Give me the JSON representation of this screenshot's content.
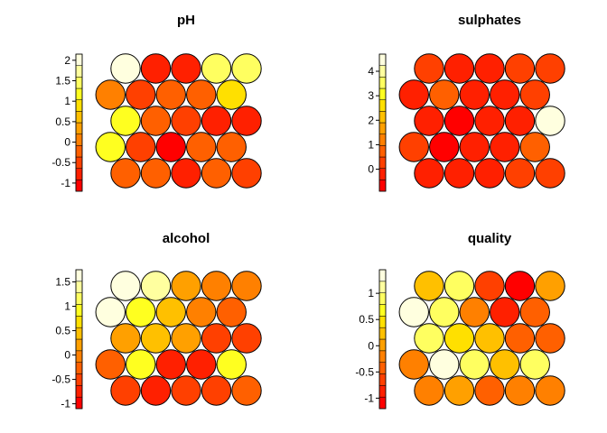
{
  "palette": [
    "#ff0000",
    "#ff2000",
    "#ff4000",
    "#ff6000",
    "#ff8000",
    "#ffa000",
    "#ffc000",
    "#ffe000",
    "#ffff20",
    "#ffff60",
    "#ffff9f",
    "#ffffdf"
  ],
  "chart_data": [
    {
      "type": "heatmap",
      "title": "pH",
      "ylim": [
        -1.2,
        2.15
      ],
      "ticks": [
        {
          "value": 2,
          "label": "2"
        },
        {
          "value": 1.5,
          "label": "1.5"
        },
        {
          "value": 1,
          "label": "1"
        },
        {
          "value": 0.5,
          "label": "0.5"
        },
        {
          "value": 0,
          "label": "0"
        },
        {
          "value": -0.5,
          "label": "-0.5"
        },
        {
          "value": -1,
          "label": "-1"
        }
      ],
      "rows": [
        [
          1.95,
          -0.8,
          -0.65,
          1.35,
          1.35
        ],
        [
          -0.05,
          -0.4,
          -0.1,
          -0.15,
          1.0
        ],
        [
          1.3,
          -0.35,
          -0.5,
          -0.7,
          -0.9
        ],
        [
          1.1,
          -0.6,
          -1.0,
          -0.3,
          -0.1
        ],
        [
          -0.3,
          -0.15,
          -0.85,
          -0.35,
          -0.5
        ]
      ]
    },
    {
      "type": "heatmap",
      "title": "sulphates",
      "ylim": [
        -0.9,
        4.7
      ],
      "ticks": [
        {
          "value": 4,
          "label": "4"
        },
        {
          "value": 3,
          "label": "3"
        },
        {
          "value": 2,
          "label": "2"
        },
        {
          "value": 1,
          "label": "1"
        },
        {
          "value": 0,
          "label": "0"
        }
      ],
      "rows": [
        [
          0.3,
          -0.3,
          -0.1,
          0.3,
          0.3
        ],
        [
          -0.1,
          0.7,
          -0.3,
          -0.2,
          0.5
        ],
        [
          -0.2,
          -0.5,
          -0.3,
          0.0,
          4.6
        ],
        [
          0.3,
          -0.5,
          -0.3,
          0.0,
          0.9
        ],
        [
          -0.3,
          -0.2,
          -0.1,
          0.1,
          0.3
        ]
      ]
    },
    {
      "type": "heatmap",
      "title": "alcohol",
      "ylim": [
        -1.1,
        1.75
      ],
      "ticks": [
        {
          "value": 1.5,
          "label": "1.5"
        },
        {
          "value": 1,
          "label": "1"
        },
        {
          "value": 0.5,
          "label": "0.5"
        },
        {
          "value": 0,
          "label": "0"
        },
        {
          "value": -0.5,
          "label": "-0.5"
        },
        {
          "value": -1,
          "label": "-1"
        }
      ],
      "rows": [
        [
          1.65,
          1.3,
          0.1,
          -0.05,
          0.0
        ],
        [
          1.6,
          1.0,
          0.4,
          0.05,
          -0.25
        ],
        [
          0.25,
          0.4,
          0.2,
          -0.5,
          -0.6
        ],
        [
          -0.3,
          0.9,
          -0.75,
          -0.75,
          0.95
        ],
        [
          -0.6,
          -0.75,
          -0.55,
          -0.45,
          -0.3
        ]
      ]
    },
    {
      "type": "heatmap",
      "title": "quality",
      "ylim": [
        -1.2,
        1.45
      ],
      "ticks": [
        {
          "value": 1,
          "label": "1"
        },
        {
          "value": 0.5,
          "label": "0.5"
        },
        {
          "value": 0,
          "label": "0"
        },
        {
          "value": -0.5,
          "label": "-0.5"
        },
        {
          "value": -1,
          "label": "-1"
        }
      ],
      "rows": [
        [
          0.15,
          0.85,
          -0.55,
          -1.05,
          0.05
        ],
        [
          1.4,
          0.8,
          -0.15,
          -0.95,
          -0.4
        ],
        [
          1.0,
          0.45,
          0.25,
          -0.4,
          -0.35
        ],
        [
          -0.25,
          1.35,
          0.95,
          0.3,
          0.95
        ],
        [
          -0.25,
          0.0,
          -0.4,
          -0.25,
          -0.3
        ]
      ]
    }
  ]
}
